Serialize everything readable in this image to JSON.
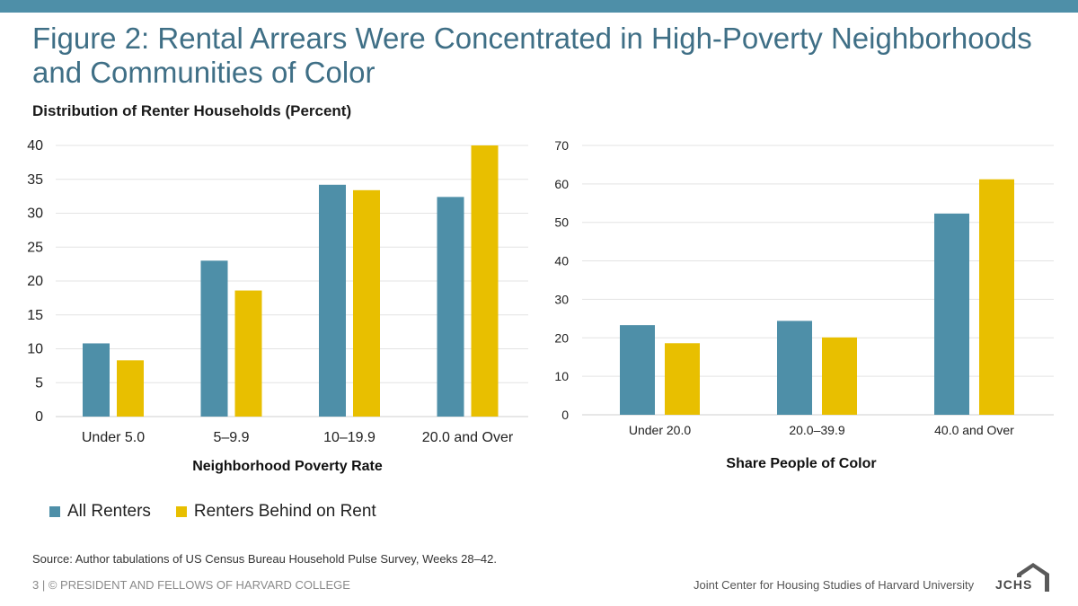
{
  "slide": {
    "title": "Figure 2: Rental Arrears Were Concentrated in High-Poverty Neighborhoods and Communities of Color",
    "subtitle": "Distribution  of Renter Households (Percent)",
    "source": "Source: Author tabulations of US Census Bureau Household Pulse Survey, Weeks 28–42.",
    "footer_left": "3 | © PRESIDENT AND FELLOWS OF HARVARD COLLEGE",
    "footer_right": "Joint Center for Housing Studies of Harvard University",
    "logo_text": "JCHS",
    "logo_icon": "house-roof-icon"
  },
  "legend": [
    {
      "name": "All Renters",
      "color": "#4e8fa8"
    },
    {
      "name": "Renters Behind on Rent",
      "color": "#e8bf00"
    }
  ],
  "chart_data": [
    {
      "type": "bar",
      "categories": [
        "Under 5.0",
        "5–9.9",
        "10–19.9",
        "20.0 and Over"
      ],
      "series": [
        {
          "name": "All Renters",
          "values": [
            10.8,
            23.0,
            34.2,
            32.4
          ]
        },
        {
          "name": "Renters Behind on Rent",
          "values": [
            8.3,
            18.6,
            33.4,
            40.0
          ]
        }
      ],
      "xlabel": "Neighborhood Poverty Rate",
      "ylabel": "",
      "ylim": [
        0,
        40
      ],
      "yticks": [
        0,
        5,
        10,
        15,
        20,
        25,
        30,
        35,
        40
      ],
      "grid": true
    },
    {
      "type": "bar",
      "categories": [
        "Under 20.0",
        "20.0–39.9",
        "40.0 and Over"
      ],
      "series": [
        {
          "name": "All Renters",
          "values": [
            23.3,
            24.4,
            52.3
          ]
        },
        {
          "name": "Renters Behind on Rent",
          "values": [
            18.6,
            20.1,
            61.2
          ]
        }
      ],
      "xlabel": "Share People of Color",
      "ylabel": "",
      "ylim": [
        0,
        70
      ],
      "yticks": [
        0,
        10,
        20,
        30,
        40,
        50,
        60,
        70
      ],
      "grid": true
    }
  ]
}
